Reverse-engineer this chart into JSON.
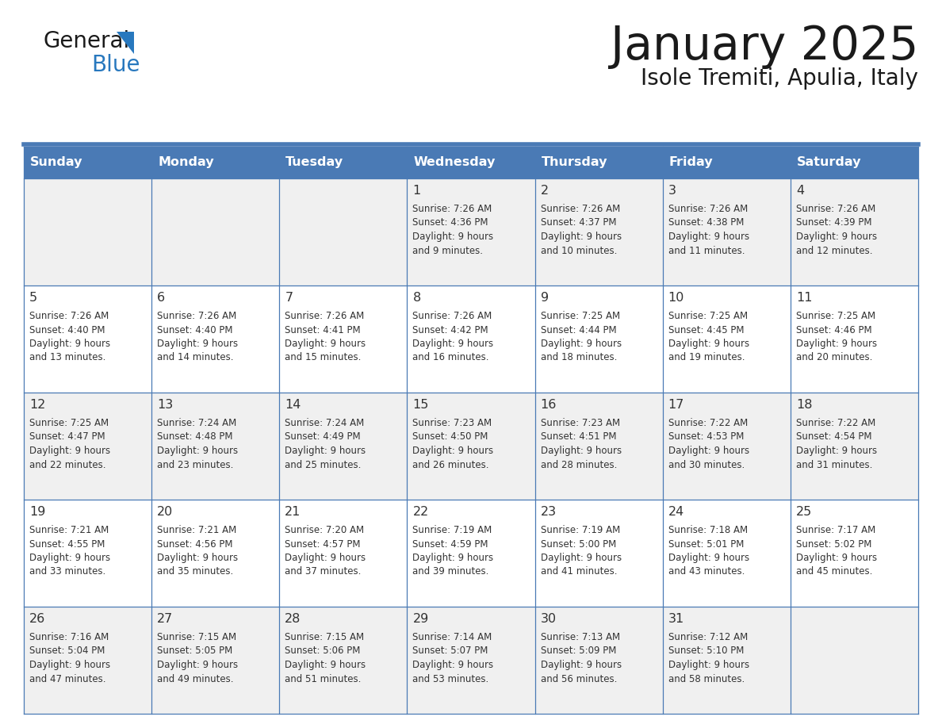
{
  "title": "January 2025",
  "subtitle": "Isole Tremiti, Apulia, Italy",
  "days_of_week": [
    "Sunday",
    "Monday",
    "Tuesday",
    "Wednesday",
    "Thursday",
    "Friday",
    "Saturday"
  ],
  "header_bg": "#4a7ab5",
  "header_text": "#ffffff",
  "cell_bg_odd": "#f0f0f0",
  "cell_bg_even": "#ffffff",
  "cell_text": "#333333",
  "border_color": "#4a7ab5",
  "title_color": "#1a1a1a",
  "subtitle_color": "#1a1a1a",
  "logo_general_color": "#1a1a1a",
  "logo_blue_color": "#2878be",
  "calendar_data": [
    [
      {
        "day": null
      },
      {
        "day": null
      },
      {
        "day": null
      },
      {
        "day": 1,
        "sunrise": "7:26 AM",
        "sunset": "4:36 PM",
        "daylight_hrs": 9,
        "daylight_min": 9
      },
      {
        "day": 2,
        "sunrise": "7:26 AM",
        "sunset": "4:37 PM",
        "daylight_hrs": 9,
        "daylight_min": 10
      },
      {
        "day": 3,
        "sunrise": "7:26 AM",
        "sunset": "4:38 PM",
        "daylight_hrs": 9,
        "daylight_min": 11
      },
      {
        "day": 4,
        "sunrise": "7:26 AM",
        "sunset": "4:39 PM",
        "daylight_hrs": 9,
        "daylight_min": 12
      }
    ],
    [
      {
        "day": 5,
        "sunrise": "7:26 AM",
        "sunset": "4:40 PM",
        "daylight_hrs": 9,
        "daylight_min": 13
      },
      {
        "day": 6,
        "sunrise": "7:26 AM",
        "sunset": "4:40 PM",
        "daylight_hrs": 9,
        "daylight_min": 14
      },
      {
        "day": 7,
        "sunrise": "7:26 AM",
        "sunset": "4:41 PM",
        "daylight_hrs": 9,
        "daylight_min": 15
      },
      {
        "day": 8,
        "sunrise": "7:26 AM",
        "sunset": "4:42 PM",
        "daylight_hrs": 9,
        "daylight_min": 16
      },
      {
        "day": 9,
        "sunrise": "7:25 AM",
        "sunset": "4:44 PM",
        "daylight_hrs": 9,
        "daylight_min": 18
      },
      {
        "day": 10,
        "sunrise": "7:25 AM",
        "sunset": "4:45 PM",
        "daylight_hrs": 9,
        "daylight_min": 19
      },
      {
        "day": 11,
        "sunrise": "7:25 AM",
        "sunset": "4:46 PM",
        "daylight_hrs": 9,
        "daylight_min": 20
      }
    ],
    [
      {
        "day": 12,
        "sunrise": "7:25 AM",
        "sunset": "4:47 PM",
        "daylight_hrs": 9,
        "daylight_min": 22
      },
      {
        "day": 13,
        "sunrise": "7:24 AM",
        "sunset": "4:48 PM",
        "daylight_hrs": 9,
        "daylight_min": 23
      },
      {
        "day": 14,
        "sunrise": "7:24 AM",
        "sunset": "4:49 PM",
        "daylight_hrs": 9,
        "daylight_min": 25
      },
      {
        "day": 15,
        "sunrise": "7:23 AM",
        "sunset": "4:50 PM",
        "daylight_hrs": 9,
        "daylight_min": 26
      },
      {
        "day": 16,
        "sunrise": "7:23 AM",
        "sunset": "4:51 PM",
        "daylight_hrs": 9,
        "daylight_min": 28
      },
      {
        "day": 17,
        "sunrise": "7:22 AM",
        "sunset": "4:53 PM",
        "daylight_hrs": 9,
        "daylight_min": 30
      },
      {
        "day": 18,
        "sunrise": "7:22 AM",
        "sunset": "4:54 PM",
        "daylight_hrs": 9,
        "daylight_min": 31
      }
    ],
    [
      {
        "day": 19,
        "sunrise": "7:21 AM",
        "sunset": "4:55 PM",
        "daylight_hrs": 9,
        "daylight_min": 33
      },
      {
        "day": 20,
        "sunrise": "7:21 AM",
        "sunset": "4:56 PM",
        "daylight_hrs": 9,
        "daylight_min": 35
      },
      {
        "day": 21,
        "sunrise": "7:20 AM",
        "sunset": "4:57 PM",
        "daylight_hrs": 9,
        "daylight_min": 37
      },
      {
        "day": 22,
        "sunrise": "7:19 AM",
        "sunset": "4:59 PM",
        "daylight_hrs": 9,
        "daylight_min": 39
      },
      {
        "day": 23,
        "sunrise": "7:19 AM",
        "sunset": "5:00 PM",
        "daylight_hrs": 9,
        "daylight_min": 41
      },
      {
        "day": 24,
        "sunrise": "7:18 AM",
        "sunset": "5:01 PM",
        "daylight_hrs": 9,
        "daylight_min": 43
      },
      {
        "day": 25,
        "sunrise": "7:17 AM",
        "sunset": "5:02 PM",
        "daylight_hrs": 9,
        "daylight_min": 45
      }
    ],
    [
      {
        "day": 26,
        "sunrise": "7:16 AM",
        "sunset": "5:04 PM",
        "daylight_hrs": 9,
        "daylight_min": 47
      },
      {
        "day": 27,
        "sunrise": "7:15 AM",
        "sunset": "5:05 PM",
        "daylight_hrs": 9,
        "daylight_min": 49
      },
      {
        "day": 28,
        "sunrise": "7:15 AM",
        "sunset": "5:06 PM",
        "daylight_hrs": 9,
        "daylight_min": 51
      },
      {
        "day": 29,
        "sunrise": "7:14 AM",
        "sunset": "5:07 PM",
        "daylight_hrs": 9,
        "daylight_min": 53
      },
      {
        "day": 30,
        "sunrise": "7:13 AM",
        "sunset": "5:09 PM",
        "daylight_hrs": 9,
        "daylight_min": 56
      },
      {
        "day": 31,
        "sunrise": "7:12 AM",
        "sunset": "5:10 PM",
        "daylight_hrs": 9,
        "daylight_min": 58
      },
      {
        "day": null
      }
    ]
  ]
}
